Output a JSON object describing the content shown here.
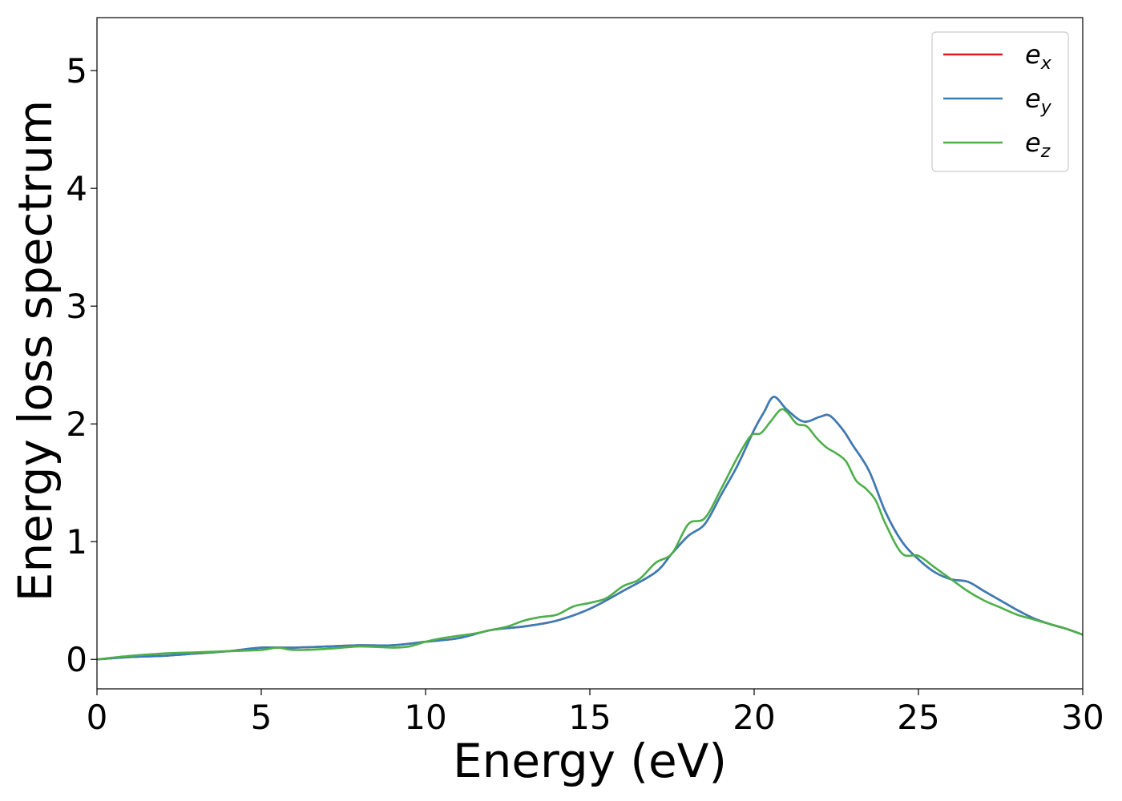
{
  "chart_data": {
    "type": "line",
    "title": "",
    "xlabel": "Energy (eV)",
    "ylabel": "Energy loss spectrum",
    "xlim": [
      0,
      30
    ],
    "ylim": [
      -0.25,
      5.45
    ],
    "xticks": [
      0,
      5,
      10,
      15,
      20,
      25,
      30
    ],
    "yticks": [
      0,
      1,
      2,
      3,
      4,
      5
    ],
    "grid": false,
    "legend_position": "top-right",
    "series": [
      {
        "name": "e_x",
        "legend_base": "e",
        "legend_sub": "x",
        "color": "#e41a1c",
        "x": [
          0,
          1,
          2,
          3,
          4,
          5,
          6,
          7,
          8,
          9,
          10,
          11,
          12,
          13,
          14,
          15,
          16,
          17,
          17.5,
          18,
          18.5,
          19,
          19.5,
          20,
          20.3,
          20.6,
          21,
          21.5,
          22,
          22.3,
          22.7,
          23,
          23.5,
          24,
          24.5,
          25,
          25.5,
          26,
          26.5,
          27,
          27.5,
          28,
          28.5,
          29,
          29.5,
          30
        ],
        "y": [
          0,
          0.02,
          0.03,
          0.05,
          0.07,
          0.1,
          0.1,
          0.11,
          0.12,
          0.12,
          0.15,
          0.18,
          0.25,
          0.28,
          0.33,
          0.43,
          0.58,
          0.74,
          0.9,
          1.05,
          1.15,
          1.4,
          1.65,
          1.95,
          2.1,
          2.23,
          2.12,
          2.02,
          2.06,
          2.07,
          1.95,
          1.82,
          1.6,
          1.25,
          1.0,
          0.85,
          0.74,
          0.68,
          0.66,
          0.58,
          0.5,
          0.42,
          0.35,
          0.3,
          0.26,
          0.21
        ]
      },
      {
        "name": "e_y",
        "legend_base": "e",
        "legend_sub": "y",
        "color": "#377eb8",
        "x": [
          0,
          1,
          2,
          3,
          4,
          5,
          6,
          7,
          8,
          9,
          10,
          11,
          12,
          13,
          14,
          15,
          16,
          17,
          17.5,
          18,
          18.5,
          19,
          19.5,
          20,
          20.3,
          20.6,
          21,
          21.5,
          22,
          22.3,
          22.7,
          23,
          23.5,
          24,
          24.5,
          25,
          25.5,
          26,
          26.5,
          27,
          27.5,
          28,
          28.5,
          29,
          29.5,
          30
        ],
        "y": [
          0,
          0.02,
          0.03,
          0.05,
          0.07,
          0.1,
          0.1,
          0.11,
          0.12,
          0.12,
          0.15,
          0.18,
          0.25,
          0.28,
          0.33,
          0.43,
          0.58,
          0.74,
          0.9,
          1.05,
          1.15,
          1.4,
          1.65,
          1.95,
          2.1,
          2.23,
          2.12,
          2.02,
          2.06,
          2.07,
          1.95,
          1.82,
          1.6,
          1.25,
          1.0,
          0.85,
          0.74,
          0.68,
          0.66,
          0.58,
          0.5,
          0.42,
          0.35,
          0.3,
          0.26,
          0.21
        ]
      },
      {
        "name": "e_z",
        "legend_base": "e",
        "legend_sub": "z",
        "color": "#4daf4a",
        "x": [
          0,
          1,
          2,
          3,
          4,
          5,
          5.5,
          6,
          7,
          8,
          9,
          9.5,
          10,
          10.5,
          11,
          11.5,
          12,
          12.5,
          13,
          13.5,
          14,
          14.5,
          15,
          15.5,
          16,
          16.5,
          17,
          17.5,
          18,
          18.5,
          19,
          19.5,
          19.9,
          20.2,
          20.5,
          20.8,
          21,
          21.3,
          21.6,
          21.9,
          22.2,
          22.5,
          22.8,
          23.1,
          23.4,
          23.7,
          24,
          24.5,
          25,
          25.5,
          26,
          26.5,
          27,
          27.5,
          28,
          28.5,
          29,
          29.5,
          30
        ],
        "y": [
          0,
          0.03,
          0.05,
          0.06,
          0.07,
          0.08,
          0.1,
          0.08,
          0.09,
          0.11,
          0.1,
          0.11,
          0.15,
          0.18,
          0.2,
          0.22,
          0.25,
          0.28,
          0.33,
          0.36,
          0.38,
          0.45,
          0.48,
          0.52,
          0.62,
          0.68,
          0.82,
          0.9,
          1.15,
          1.2,
          1.45,
          1.72,
          1.9,
          1.92,
          2.02,
          2.12,
          2.1,
          2.0,
          1.98,
          1.88,
          1.8,
          1.75,
          1.68,
          1.52,
          1.45,
          1.35,
          1.15,
          0.9,
          0.88,
          0.78,
          0.68,
          0.58,
          0.5,
          0.44,
          0.38,
          0.34,
          0.3,
          0.26,
          0.21
        ]
      }
    ]
  }
}
